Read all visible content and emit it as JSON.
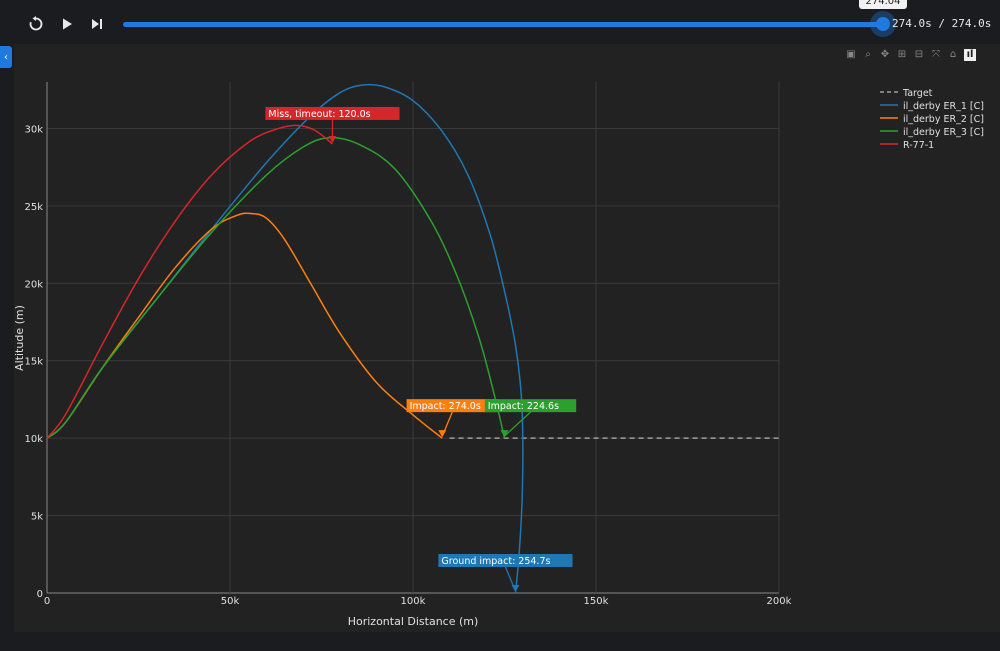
{
  "player": {
    "slider_tooltip": "274.04",
    "time_readout": "274.0s / 274.0s",
    "progress": 1.0,
    "accent_color": "#1f7ae0",
    "buttons": [
      "restart-icon",
      "play-icon",
      "step-forward-icon"
    ]
  },
  "modebar": [
    "camera-icon",
    "zoom-icon",
    "pan-icon",
    "zoom-in-icon",
    "zoom-out-icon",
    "autoscale-icon",
    "home-icon",
    "plotly-logo"
  ],
  "sidebar_toggle": "‹",
  "chart_data": {
    "type": "line",
    "xlabel": "Horizontal Distance (m)",
    "ylabel": "Altitude (m)",
    "xlim": [
      0,
      200000
    ],
    "ylim": [
      0,
      33000
    ],
    "x_ticks": [
      0,
      50000,
      100000,
      150000,
      200000
    ],
    "x_tick_labels": [
      "0",
      "50k",
      "100k",
      "150k",
      "200k"
    ],
    "y_ticks": [
      0,
      5000,
      10000,
      15000,
      20000,
      25000,
      30000
    ],
    "y_tick_labels": [
      "0",
      "5k",
      "10k",
      "15k",
      "20k",
      "25k",
      "30k"
    ],
    "grid": true,
    "legend_position": "top-right",
    "series": [
      {
        "name": "Target",
        "color": "#a0a0a0",
        "dash": true,
        "x": [
          110000,
          200000
        ],
        "y": [
          10000,
          10000
        ]
      },
      {
        "name": "il_derby ER_1 [C]",
        "color": "#1f77b4",
        "x": [
          0,
          5000,
          15000,
          30000,
          45000,
          60000,
          72000,
          80000,
          86000,
          92000,
          100000,
          108000,
          115000,
          121000,
          125000,
          128000,
          129500,
          130000,
          129800,
          129000,
          128000
        ],
        "y": [
          10000,
          11000,
          14500,
          19000,
          23500,
          27800,
          30800,
          32300,
          32800,
          32700,
          31800,
          29800,
          27000,
          23200,
          19500,
          16000,
          13000,
          10000,
          6000,
          2500,
          0
        ]
      },
      {
        "name": "il_derby ER_2 [C]",
        "color": "#ff7f0e",
        "x": [
          0,
          5000,
          15000,
          25000,
          35000,
          45000,
          52000,
          56000,
          60000,
          65000,
          72000,
          80000,
          90000,
          100000,
          108000
        ],
        "y": [
          10000,
          11000,
          14500,
          17800,
          21000,
          23500,
          24400,
          24500,
          24200,
          22800,
          20000,
          16800,
          13600,
          11500,
          10000
        ]
      },
      {
        "name": "il_derby ER_3 [C]",
        "color": "#2ca02c",
        "x": [
          0,
          5000,
          15000,
          30000,
          45000,
          60000,
          70000,
          77000,
          85000,
          95000,
          105000,
          112000,
          118000,
          122000,
          125000
        ],
        "y": [
          10000,
          11000,
          14500,
          19000,
          23300,
          27000,
          28800,
          29400,
          29000,
          27400,
          24000,
          20500,
          16500,
          13000,
          10000
        ]
      },
      {
        "name": "R-77-1",
        "color": "#d62728",
        "x": [
          0,
          5000,
          15000,
          25000,
          35000,
          45000,
          55000,
          62000,
          68000,
          73000,
          78000
        ],
        "y": [
          10000,
          11500,
          16000,
          20300,
          24000,
          27000,
          29100,
          29900,
          30200,
          29900,
          29000
        ]
      }
    ],
    "annotations": [
      {
        "text": "Miss, timeout: 120.0s",
        "color": "#d62728",
        "x": 78000,
        "y": 29000
      },
      {
        "text": "Impact: 274.0s",
        "color": "#ff7f0e",
        "x": 108000,
        "y": 10000
      },
      {
        "text": "Impact: 224.6s",
        "color": "#2ca02c",
        "x": 125000,
        "y": 10000
      },
      {
        "text": "Ground impact: 254.7s",
        "color": "#1f77b4",
        "x": 128000,
        "y": 0
      }
    ]
  }
}
